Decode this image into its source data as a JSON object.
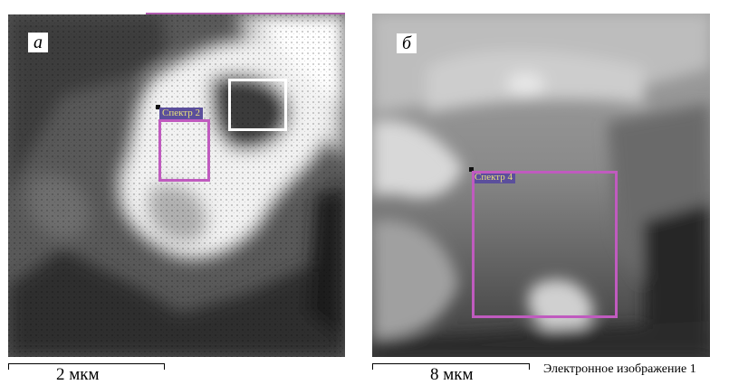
{
  "panels": [
    {
      "id": "a",
      "letter": "а",
      "spectrum_label": "Спектр 2",
      "scale_label": "2 мкм"
    },
    {
      "id": "b",
      "letter": "б",
      "spectrum_label": "Спектр 4",
      "scale_label": "8 мкм"
    }
  ],
  "caption": "Электронное изображение 1",
  "colors": {
    "roi": "#c05bbf",
    "label_bg": "#5b4f9c",
    "label_text": "#e8e07a"
  }
}
